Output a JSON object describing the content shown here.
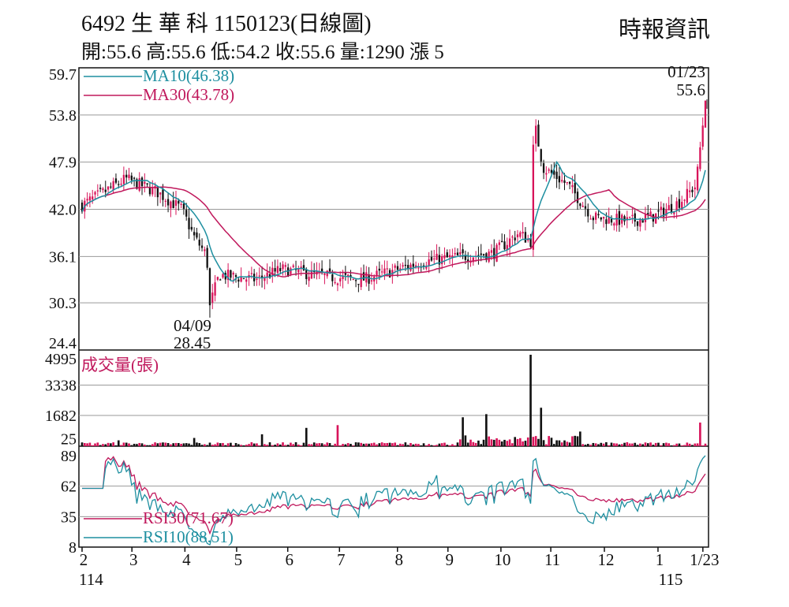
{
  "header": {
    "title": "6492 生 華 科 1150123(日線圖)",
    "ohlc": "開:55.6 高:55.6 低:54.2 收:55.6 量:1290 漲 5",
    "source": "時報資訊"
  },
  "chart_data": [
    {
      "type": "candlestick",
      "panel": "price",
      "ylim": [
        24.4,
        59.7
      ],
      "yticks": [
        "59.7",
        "53.8",
        "47.9",
        "42.0",
        "36.1",
        "30.3",
        "24.4"
      ],
      "legend": [
        {
          "name": "MA10(46.38)",
          "color": "#1e8fa0"
        },
        {
          "name": "MA30(43.78)",
          "color": "#c0185c"
        }
      ],
      "annotations": [
        {
          "date": "01/23",
          "value": "55.6",
          "position": "top-right"
        },
        {
          "date": "04/09",
          "value": "28.45",
          "position": "low"
        }
      ],
      "keypoints": [
        {
          "t": 0,
          "close": 42.5
        },
        {
          "t": 0.07,
          "close": 45.8
        },
        {
          "t": 0.12,
          "close": 44.2
        },
        {
          "t": 0.16,
          "close": 42.0
        },
        {
          "t": 0.18,
          "close": 38.5
        },
        {
          "t": 0.2,
          "close": 36.2
        },
        {
          "t": 0.205,
          "close": 30.0
        },
        {
          "t": 0.22,
          "close": 33.8
        },
        {
          "t": 0.28,
          "close": 33.2
        },
        {
          "t": 0.32,
          "close": 34.5
        },
        {
          "t": 0.4,
          "close": 33.5
        },
        {
          "t": 0.45,
          "close": 33.2
        },
        {
          "t": 0.55,
          "close": 35.5
        },
        {
          "t": 0.62,
          "close": 36.2
        },
        {
          "t": 0.66,
          "close": 36.5
        },
        {
          "t": 0.7,
          "close": 39.0
        },
        {
          "t": 0.72,
          "close": 38.0
        },
        {
          "t": 0.725,
          "close": 53.0
        },
        {
          "t": 0.74,
          "close": 47.2
        },
        {
          "t": 0.78,
          "close": 45.0
        },
        {
          "t": 0.82,
          "close": 41.0
        },
        {
          "t": 0.88,
          "close": 40.5
        },
        {
          "t": 0.92,
          "close": 41.2
        },
        {
          "t": 0.96,
          "close": 43.0
        },
        {
          "t": 0.985,
          "close": 45.0
        },
        {
          "t": 1.0,
          "close": 55.6
        }
      ]
    },
    {
      "type": "bar",
      "panel": "volume",
      "title": "成交量(張)",
      "ylim": [
        25,
        4995
      ],
      "yticks": [
        "4995",
        "3338",
        "1682",
        "25"
      ],
      "spikes": [
        {
          "t": 0.06,
          "value": 320
        },
        {
          "t": 0.181,
          "value": 450
        },
        {
          "t": 0.29,
          "value": 650
        },
        {
          "t": 0.36,
          "value": 1000
        },
        {
          "t": 0.41,
          "value": 1150
        },
        {
          "t": 0.61,
          "value": 1580
        },
        {
          "t": 0.65,
          "value": 1750
        },
        {
          "t": 0.72,
          "value": 4995
        },
        {
          "t": 0.735,
          "value": 2100
        },
        {
          "t": 0.8,
          "value": 800
        },
        {
          "t": 0.99,
          "value": 1290
        }
      ]
    },
    {
      "type": "line",
      "panel": "rsi",
      "ylim": [
        8,
        89
      ],
      "yticks": [
        "89",
        "62",
        "35",
        "8"
      ],
      "legend": [
        {
          "name": "RSI30(71.67)",
          "color": "#c0185c"
        },
        {
          "name": "RSI10(88.51)",
          "color": "#1e8fa0"
        }
      ]
    }
  ],
  "xaxis": {
    "ticks": [
      "2",
      "3",
      "4",
      "5",
      "6",
      "7",
      "8",
      "9",
      "10",
      "11",
      "12",
      "1",
      "1/23"
    ],
    "years": [
      {
        "label": "114",
        "t": 0
      },
      {
        "label": "115",
        "t": 0.94
      }
    ]
  },
  "colors": {
    "up": "#d8145a",
    "down": "#111111",
    "ma10": "#1e8fa0",
    "ma30": "#c0185c",
    "grid": "#9a9a9a"
  }
}
